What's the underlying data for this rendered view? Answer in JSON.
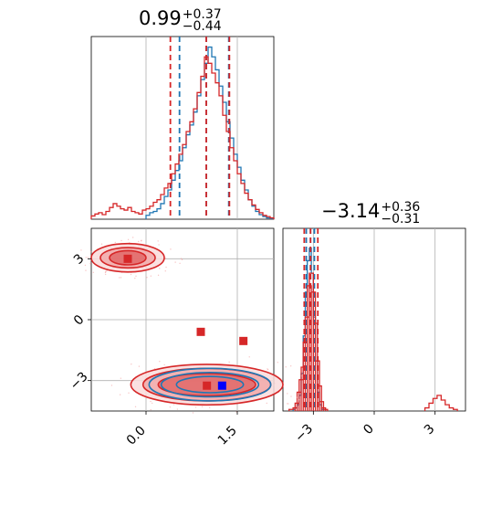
{
  "titles": [
    {
      "value": "0.99",
      "plus": "+0.37",
      "minus": "−0.44"
    },
    {
      "value": "−3.14",
      "plus": "+0.36",
      "minus": "−0.31"
    }
  ],
  "colors": {
    "red": "#d62728",
    "blue": "#1f77b4",
    "red_fill": "#f2b8b8",
    "grid": "#b0b0b0"
  },
  "chart_data": [
    {
      "panel": "histogram-param-1",
      "type": "histogram",
      "xlim": [
        -0.9,
        2.1
      ],
      "series": [
        {
          "color": "#1f77b4",
          "quantile_lines": [
            0.55,
            0.99,
            1.36
          ],
          "bins": [
            [
              0.0,
              0.6
            ],
            [
              0.06,
              1.0
            ],
            [
              0.12,
              1.2
            ],
            [
              0.18,
              1.6
            ],
            [
              0.24,
              2.4
            ],
            [
              0.3,
              3.5
            ],
            [
              0.36,
              4.5
            ],
            [
              0.42,
              6.0
            ],
            [
              0.48,
              7.5
            ],
            [
              0.54,
              9.0
            ],
            [
              0.6,
              11.0
            ],
            [
              0.66,
              13.0
            ],
            [
              0.72,
              14.5
            ],
            [
              0.78,
              16.5
            ],
            [
              0.84,
              19.0
            ],
            [
              0.9,
              21.5
            ],
            [
              0.96,
              24.0
            ],
            [
              1.02,
              26.5
            ],
            [
              1.08,
              25.0
            ],
            [
              1.14,
              23.0
            ],
            [
              1.2,
              20.5
            ],
            [
              1.26,
              18.0
            ],
            [
              1.32,
              15.0
            ],
            [
              1.38,
              12.5
            ],
            [
              1.44,
              10.0
            ],
            [
              1.5,
              8.0
            ],
            [
              1.56,
              6.0
            ],
            [
              1.62,
              4.5
            ],
            [
              1.68,
              3.0
            ],
            [
              1.74,
              2.0
            ],
            [
              1.8,
              1.2
            ],
            [
              1.86,
              0.7
            ],
            [
              1.92,
              0.4
            ],
            [
              1.98,
              0.2
            ],
            [
              2.04,
              0.1
            ]
          ]
        },
        {
          "color": "#d62728",
          "quantile_lines": [
            0.4,
            0.99,
            1.37
          ],
          "bins": [
            [
              -0.9,
              0.5
            ],
            [
              -0.84,
              0.8
            ],
            [
              -0.78,
              1.0
            ],
            [
              -0.72,
              0.7
            ],
            [
              -0.66,
              1.2
            ],
            [
              -0.6,
              1.8
            ],
            [
              -0.54,
              2.4
            ],
            [
              -0.48,
              2.0
            ],
            [
              -0.42,
              1.6
            ],
            [
              -0.36,
              1.4
            ],
            [
              -0.3,
              1.8
            ],
            [
              -0.24,
              1.2
            ],
            [
              -0.18,
              1.0
            ],
            [
              -0.12,
              0.8
            ],
            [
              -0.06,
              1.4
            ],
            [
              0.0,
              1.6
            ],
            [
              0.06,
              2.0
            ],
            [
              0.12,
              2.6
            ],
            [
              0.18,
              3.0
            ],
            [
              0.24,
              3.8
            ],
            [
              0.3,
              4.8
            ],
            [
              0.36,
              5.5
            ],
            [
              0.42,
              7.0
            ],
            [
              0.48,
              8.5
            ],
            [
              0.54,
              10.0
            ],
            [
              0.6,
              11.5
            ],
            [
              0.66,
              13.5
            ],
            [
              0.72,
              15.0
            ],
            [
              0.78,
              17.0
            ],
            [
              0.84,
              19.5
            ],
            [
              0.9,
              22.0
            ],
            [
              0.96,
              25.0
            ],
            [
              1.02,
              24.0
            ],
            [
              1.08,
              22.5
            ],
            [
              1.14,
              21.0
            ],
            [
              1.2,
              19.0
            ],
            [
              1.26,
              16.0
            ],
            [
              1.32,
              13.5
            ],
            [
              1.38,
              11.0
            ],
            [
              1.44,
              9.0
            ],
            [
              1.5,
              7.0
            ],
            [
              1.56,
              5.5
            ],
            [
              1.62,
              4.0
            ],
            [
              1.68,
              3.0
            ],
            [
              1.74,
              2.2
            ],
            [
              1.8,
              1.5
            ],
            [
              1.86,
              1.0
            ],
            [
              1.92,
              0.6
            ],
            [
              1.98,
              0.4
            ],
            [
              2.04,
              0.2
            ]
          ]
        }
      ]
    },
    {
      "panel": "histogram-param-2",
      "type": "histogram",
      "xlim": [
        -4.5,
        4.5
      ],
      "xticks": [
        "−3",
        "0",
        "3"
      ],
      "series": [
        {
          "color": "#1f77b4",
          "quantile_lines": [
            -3.35,
            -3.14,
            -2.95
          ],
          "bins": [
            [
              -4.0,
              0.5
            ],
            [
              -3.9,
              1.0
            ],
            [
              -3.8,
              2.0
            ],
            [
              -3.7,
              5.0
            ],
            [
              -3.6,
              12.0
            ],
            [
              -3.5,
              24.0
            ],
            [
              -3.4,
              38.0
            ],
            [
              -3.3,
              48.0
            ],
            [
              -3.2,
              52.0
            ],
            [
              -3.1,
              44.0
            ],
            [
              -3.0,
              30.0
            ],
            [
              -2.9,
              16.0
            ],
            [
              -2.8,
              6.0
            ],
            [
              -2.7,
              2.0
            ],
            [
              -2.6,
              0.5
            ]
          ]
        },
        {
          "color": "#d62728",
          "quantile_lines": [
            -3.45,
            -3.14,
            -2.78
          ],
          "bins": [
            [
              -4.2,
              0.5
            ],
            [
              -4.0,
              1.0
            ],
            [
              -3.9,
              2.5
            ],
            [
              -3.8,
              6.0
            ],
            [
              -3.7,
              10.0
            ],
            [
              -3.6,
              14.0
            ],
            [
              -3.5,
              22.0
            ],
            [
              -3.4,
              30.0
            ],
            [
              -3.3,
              40.0
            ],
            [
              -3.2,
              44.0
            ],
            [
              -3.1,
              38.0
            ],
            [
              -3.0,
              28.0
            ],
            [
              -2.9,
              16.0
            ],
            [
              -2.8,
              8.0
            ],
            [
              -2.7,
              3.0
            ],
            [
              -2.6,
              1.0
            ],
            [
              -2.5,
              0.5
            ],
            [
              2.5,
              1.0
            ],
            [
              2.7,
              2.5
            ],
            [
              2.9,
              4.0
            ],
            [
              3.1,
              5.0
            ],
            [
              3.3,
              3.5
            ],
            [
              3.5,
              2.0
            ],
            [
              3.7,
              1.0
            ],
            [
              3.9,
              0.5
            ]
          ]
        }
      ]
    },
    {
      "panel": "contour-2d",
      "type": "scatter",
      "xlim": [
        -0.9,
        2.1
      ],
      "ylim": [
        -4.5,
        4.5
      ],
      "xticks": [
        "0.0",
        "1.5"
      ],
      "yticks": [
        "−3",
        "0",
        "3"
      ],
      "series": [
        {
          "color": "#d62728",
          "kind": "contour",
          "regions": [
            {
              "center": [
                1.0,
                -3.2
              ],
              "half_widths": [
                [
                  0.8,
                  0.55
                ],
                [
                  1.05,
                  0.8
                ],
                [
                  1.25,
                  1.0
                ]
              ]
            },
            {
              "center": [
                -0.3,
                3.05
              ],
              "half_widths": [
                [
                  0.3,
                  0.35
                ],
                [
                  0.45,
                  0.5
                ],
                [
                  0.6,
                  0.7
                ]
              ]
            }
          ]
        },
        {
          "color": "#1f77b4",
          "kind": "contour",
          "regions": [
            {
              "center": [
                1.05,
                -3.2
              ],
              "half_widths": [
                [
                  0.55,
                  0.4
                ],
                [
                  0.8,
                  0.6
                ],
                [
                  1.0,
                  0.8
                ]
              ]
            }
          ]
        },
        {
          "color": "#d62728",
          "kind": "markers",
          "points": [
            [
              -0.3,
              3.0
            ],
            [
              0.9,
              -0.6
            ],
            [
              1.6,
              -1.05
            ],
            [
              1.0,
              -3.25
            ]
          ]
        },
        {
          "color": "#0000ff",
          "kind": "markers",
          "points": [
            [
              1.25,
              -3.25
            ]
          ]
        }
      ]
    }
  ]
}
